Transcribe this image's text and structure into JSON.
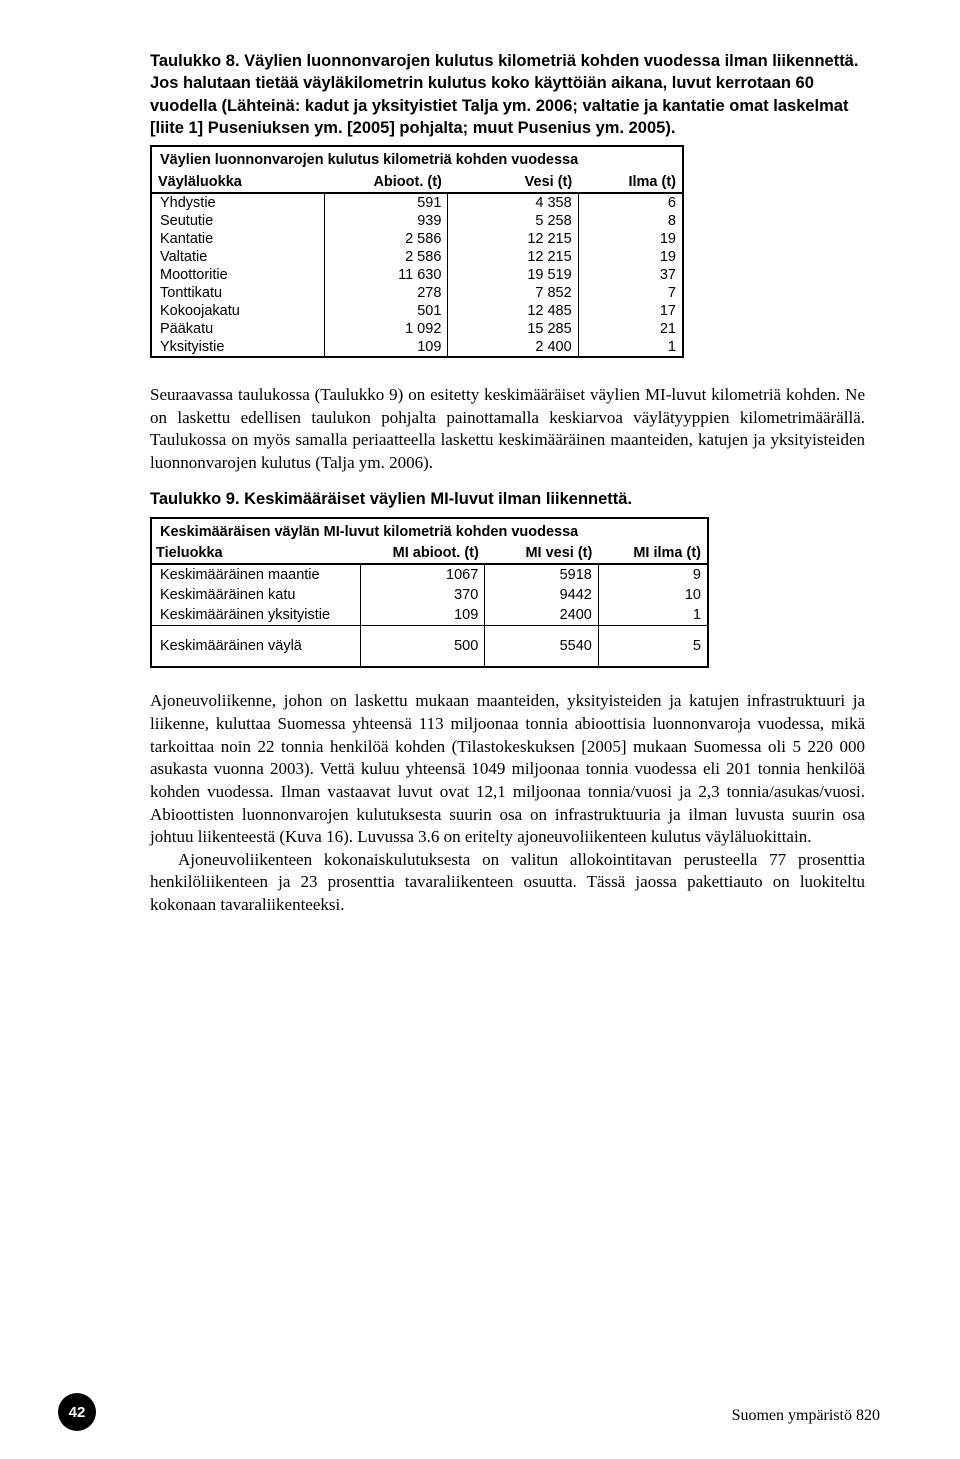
{
  "taulukko8": {
    "caption": "Taulukko 8. Väylien luonnonvarojen kulutus kilometriä kohden vuodessa ilman liikennettä. Jos halutaan tietää väyläkilometrin kulutus koko käyttöiän aikana, luvut kerrotaan 60 vuodella (Lähteinä: kadut ja yksityistiet Talja ym. 2006; valtatie ja kantatie omat laskelmat [liite 1] Puseniuksen ym. [2005] pohjalta; muut Pusenius ym. 2005).",
    "title": "Väylien luonnonvarojen kulutus kilometriä kohden vuodessa",
    "headers": [
      "Väyläluokka",
      "Abioot. (t)",
      "Vesi (t)",
      "Ilma (t)"
    ],
    "rows": [
      [
        "Yhdystie",
        "591",
        "4 358",
        "6"
      ],
      [
        "Seututie",
        "939",
        "5 258",
        "8"
      ],
      [
        "Kantatie",
        "2 586",
        "12 215",
        "19"
      ],
      [
        "Valtatie",
        "2 586",
        "12 215",
        "19"
      ],
      [
        "Moottoritie",
        "11 630",
        "19 519",
        "37"
      ],
      [
        "Tonttikatu",
        "278",
        "7 852",
        "7"
      ],
      [
        "Kokoojakatu",
        "501",
        "12 485",
        "17"
      ],
      [
        "Pääkatu",
        "1 092",
        "15 285",
        "21"
      ],
      [
        "Yksityistie",
        "109",
        "2 400",
        "1"
      ]
    ]
  },
  "para1": "Seuraavassa taulukossa (Taulukko 9) on esitetty keskimääräiset väylien MI-luvut kilometriä kohden. Ne on laskettu edellisen taulukon pohjalta painottamalla keskiarvoa väylätyyppien kilometrimäärällä. Taulukossa on myös samalla periaatteella laskettu keskimääräinen maanteiden, katujen ja yksityisteiden luonnonvarojen kulutus (Talja ym. 2006).",
  "taulukko9": {
    "caption": "Taulukko 9. Keskimääräiset väylien MI-luvut ilman liikennettä.",
    "title": "Keskimääräisen väylän MI-luvut kilometriä kohden vuodessa",
    "headers": [
      " Tieluokka",
      "MI abioot. (t)",
      "MI vesi (t)",
      "MI ilma (t)"
    ],
    "rows": [
      [
        "Keskimääräinen maantie",
        "1067",
        "5918",
        "9"
      ],
      [
        "Keskimääräinen katu",
        "370",
        "9442",
        "10"
      ],
      [
        "Keskimääräinen yksityistie",
        "109",
        "2400",
        "1"
      ]
    ],
    "summary": [
      "Keskimääräinen väylä",
      "500",
      "5540",
      "5"
    ]
  },
  "para2a": "Ajoneuvoliikenne, johon on laskettu mukaan maanteiden, yksityisteiden ja katujen infrastruktuuri ja liikenne, kuluttaa Suomessa yhteensä 113 miljoonaa tonnia abioottisia luonnonvaroja vuodessa, mikä tarkoittaa noin 22 tonnia henkilöä kohden (Tilastokeskuksen [2005] mukaan Suomessa oli 5 220 000 asukasta vuonna 2003). Vettä kuluu yhteensä 1049 miljoonaa tonnia vuodessa eli 201 tonnia henkilöä kohden vuodessa. Ilman vastaavat luvut ovat 12,1 miljoonaa tonnia/vuosi ja 2,3 tonnia/asukas/vuosi. Abioottisten luonnonvarojen kulutuksesta suurin osa on infrastruktuuria ja ilman luvusta suurin osa johtuu liikenteestä (Kuva 16). Luvussa 3.6 on eritelty ajoneuvoliikenteen kulutus väyläluokittain.",
  "para2b": "Ajoneuvoliikenteen kokonaiskulutuksesta on valitun allokointitavan perusteella 77 prosenttia henkilöliikenteen ja 23 prosenttia tavaraliikenteen osuutta. Tässä jaossa pakettiauto on luokiteltu kokonaan tavaraliikenteeksi.",
  "footer": {
    "page": "42",
    "pub": "Suomen ympäristö 820"
  }
}
